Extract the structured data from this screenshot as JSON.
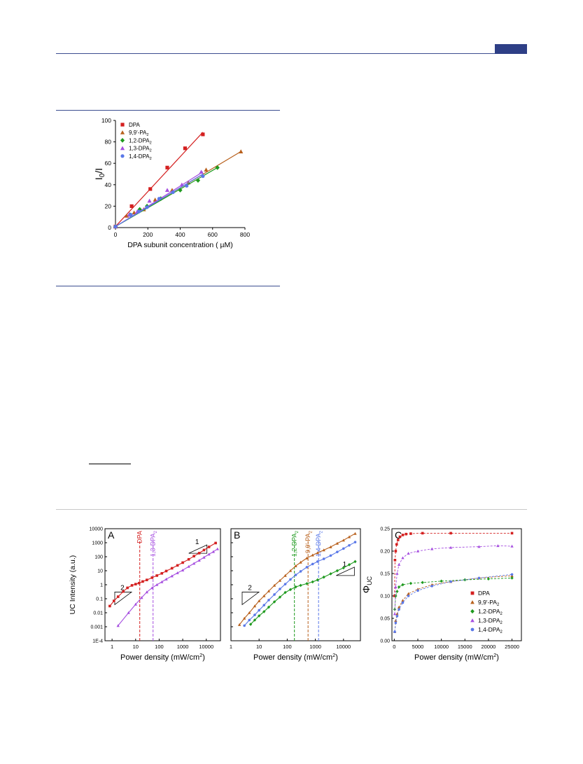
{
  "chart_data": [
    {
      "type": "scatter",
      "title": "",
      "xlabel": "DPA subunit concentration ( µM)",
      "ylabel": "I0/I",
      "xlim": [
        0,
        800
      ],
      "ylim": [
        0,
        100
      ],
      "xticks": [
        0,
        200,
        400,
        600,
        800
      ],
      "yticks": [
        0,
        20,
        40,
        60,
        80,
        100
      ],
      "grid": false,
      "legend": "top-left",
      "series": [
        {
          "name": "DPA",
          "marker": "square",
          "color": "#d42020",
          "x": [
            0,
            100,
            215,
            320,
            430,
            540
          ],
          "y": [
            1,
            20,
            36,
            56,
            74,
            87
          ],
          "fit": [
            [
              0,
              1
            ],
            [
              540,
              89
            ]
          ]
        },
        {
          "name": "9,9'-PA 2",
          "marker": "triangle",
          "color": "#b8601c",
          "x": [
            0,
            70,
            115,
            175,
            245,
            350,
            450,
            560,
            775
          ],
          "y": [
            1,
            11,
            14,
            17,
            26,
            35,
            42,
            54,
            71
          ],
          "fit": [
            [
              0,
              1
            ],
            [
              775,
              71
            ]
          ]
        },
        {
          "name": "1,2-DPA 2",
          "marker": "diamond",
          "color": "#1f9a1f",
          "x": [
            0,
            90,
            150,
            195,
            280,
            400,
            510,
            630
          ],
          "y": [
            1,
            12,
            17,
            20,
            27,
            35,
            44,
            56
          ],
          "fit": [
            [
              0,
              1
            ],
            [
              630,
              56
            ]
          ]
        },
        {
          "name": "1,3-DPA 2",
          "marker": "triangle",
          "color": "#a64fe0",
          "x": [
            0,
            85,
            135,
            210,
            320,
            410,
            530
          ],
          "y": [
            1,
            12,
            15,
            25,
            35,
            40,
            52
          ],
          "fit": [
            [
              0,
              1
            ],
            [
              540,
              52
            ]
          ]
        },
        {
          "name": "1,4-DPA 2",
          "marker": "circle",
          "color": "#5a78e8",
          "x": [
            0,
            95,
            145,
            195,
            270,
            355,
            440,
            540
          ],
          "y": [
            1,
            12,
            15,
            19,
            27,
            33,
            39,
            48
          ],
          "fit": [
            [
              0,
              1
            ],
            [
              540,
              50
            ]
          ]
        }
      ]
    },
    {
      "type": "scatter",
      "panel": "A",
      "xlabel": "Power density (mW/cm2)",
      "ylabel": "UC Intensity (a.u.)",
      "xscale": "log",
      "yscale": "log",
      "xlim": [
        0.5,
        40000
      ],
      "ylim": [
        0.0001,
        10000
      ],
      "xticks": [
        "1",
        "10",
        "100",
        "1000",
        "10000"
      ],
      "yticks": [
        "1E-4",
        "0.001",
        "0.01",
        "0.1",
        "1",
        "10",
        "100",
        "1000",
        "10000"
      ],
      "thresholds": [
        {
          "label": "DPA",
          "x": 15,
          "color": "#d42020"
        },
        {
          "label": "1,3-DPA2",
          "x": 55,
          "color": "#a64fe0"
        }
      ],
      "slope_labels": [
        {
          "label": "2",
          "x": 1.3,
          "y": 0.3
        },
        {
          "label": "1",
          "x": 1800,
          "y": 700
        }
      ],
      "series": [
        {
          "name": "DPA",
          "marker": "square",
          "color": "#d42020",
          "x": [
            0.8,
            1.2,
            1.8,
            3,
            4.5,
            7,
            10,
            14,
            20,
            30,
            50,
            80,
            130,
            200,
            350,
            600,
            1000,
            1800,
            3000,
            5000,
            8000,
            13000,
            25000
          ],
          "y": [
            0.03,
            0.07,
            0.14,
            0.33,
            0.6,
            0.9,
            1.1,
            1.3,
            1.7,
            2.2,
            3.2,
            4.5,
            6.5,
            9.5,
            15,
            24,
            38,
            65,
            110,
            180,
            300,
            500,
            950
          ]
        },
        {
          "name": "1,3-DPA 2",
          "marker": "triangle",
          "color": "#a64fe0",
          "x": [
            1.8,
            5,
            10,
            18,
            30,
            50,
            80,
            130,
            200,
            350,
            600,
            1000,
            1800,
            3000,
            5000,
            8000,
            13000,
            20000,
            30000
          ],
          "y": [
            0.0012,
            0.01,
            0.04,
            0.12,
            0.3,
            0.6,
            1,
            1.6,
            2.5,
            4.2,
            7,
            11,
            20,
            33,
            55,
            90,
            150,
            230,
            360
          ]
        }
      ]
    },
    {
      "type": "scatter",
      "panel": "B",
      "xlabel": "Power density (mW/cm2)",
      "ylabel": "",
      "xscale": "log",
      "yscale": "log",
      "xlim": [
        1,
        40000
      ],
      "ylim": [
        0.0001,
        10000
      ],
      "xticks": [
        "1",
        "10",
        "100",
        "1000",
        "10000"
      ],
      "thresholds": [
        {
          "label": "1,2-DPA2",
          "x": 180,
          "color": "#1f9a1f"
        },
        {
          "label": "9,9'-PA2",
          "x": 550,
          "color": "#b8601c"
        },
        {
          "label": "1,4-DPA2",
          "x": 1300,
          "color": "#5a78e8"
        }
      ],
      "slope_labels": [
        {
          "label": "2",
          "x": 2.5,
          "y": 0.3
        },
        {
          "label": "1",
          "x": 5500,
          "y": 18
        }
      ],
      "series": [
        {
          "name": "9,9'-PA 2",
          "marker": "triangle",
          "color": "#b8601c",
          "x": [
            2,
            3,
            4.5,
            7,
            10,
            15,
            22,
            35,
            55,
            85,
            130,
            200,
            300,
            500,
            800,
            1200,
            2000,
            3500,
            6000,
            10000,
            16000,
            26000
          ],
          "y": [
            0.0014,
            0.004,
            0.01,
            0.03,
            0.07,
            0.16,
            0.35,
            0.9,
            2,
            4.5,
            10,
            22,
            40,
            80,
            130,
            190,
            300,
            500,
            900,
            1500,
            2600,
            4500
          ]
        },
        {
          "name": "1,4-DPA 2",
          "marker": "circle",
          "color": "#5a78e8",
          "x": [
            3,
            4.5,
            7,
            10,
            15,
            22,
            35,
            55,
            85,
            130,
            200,
            300,
            500,
            800,
            1200,
            2000,
            3500,
            6000,
            10000,
            16000,
            26000
          ],
          "y": [
            0.0012,
            0.003,
            0.007,
            0.015,
            0.035,
            0.08,
            0.2,
            0.5,
            1.1,
            2.4,
            5,
            9,
            18,
            30,
            45,
            70,
            120,
            220,
            380,
            650,
            1100
          ]
        },
        {
          "name": "1,2-DPA 2",
          "marker": "diamond",
          "color": "#1f9a1f",
          "x": [
            5,
            7,
            10,
            15,
            22,
            35,
            55,
            85,
            130,
            200,
            300,
            500,
            800,
            1200,
            2000,
            3500,
            6000,
            10000,
            16000,
            26000
          ],
          "y": [
            0.0015,
            0.003,
            0.006,
            0.012,
            0.025,
            0.06,
            0.13,
            0.28,
            0.45,
            0.7,
            0.9,
            1.2,
            1.6,
            2.2,
            3.5,
            6,
            10,
            16,
            27,
            45
          ]
        }
      ]
    },
    {
      "type": "scatter",
      "panel": "C",
      "xlabel": "Power density (mW/cm2)",
      "ylabel": "ΦUC",
      "xlim": [
        -500,
        27000
      ],
      "ylim": [
        0,
        0.25
      ],
      "xticks": [
        0,
        5000,
        10000,
        15000,
        20000,
        25000
      ],
      "yticks": [
        "0.00",
        "0.05",
        "0.10",
        "0.15",
        "0.20",
        "0.25"
      ],
      "legend": "bottom-right",
      "series": [
        {
          "name": "DPA",
          "marker": "square",
          "color": "#d42020",
          "x": [
            50,
            150,
            300,
            500,
            800,
            1200,
            1800,
            2500,
            3500,
            6000,
            12000,
            25000
          ],
          "y": [
            0.1,
            0.18,
            0.2,
            0.215,
            0.225,
            0.232,
            0.236,
            0.238,
            0.239,
            0.24,
            0.24,
            0.24
          ]
        },
        {
          "name": "9,9'-PA2",
          "marker": "triangle",
          "color": "#b8601c",
          "x": [
            100,
            300,
            600,
            1000,
            1800,
            3000,
            5000,
            8000,
            12000,
            18000,
            25000
          ],
          "y": [
            0.02,
            0.045,
            0.06,
            0.075,
            0.09,
            0.105,
            0.115,
            0.125,
            0.132,
            0.14,
            0.145
          ]
        },
        {
          "name": "1,2-DPA2",
          "marker": "diamond",
          "color": "#1f9a1f",
          "x": [
            100,
            300,
            600,
            1000,
            1800,
            3500,
            6000,
            10000,
            15000,
            20000,
            25000
          ],
          "y": [
            0.07,
            0.1,
            0.11,
            0.12,
            0.125,
            0.128,
            0.13,
            0.133,
            0.136,
            0.138,
            0.14
          ]
        },
        {
          "name": "1,3-DPA2",
          "marker": "triangle",
          "color": "#a64fe0",
          "x": [
            100,
            300,
            600,
            1000,
            1800,
            3000,
            5000,
            8000,
            12000,
            18000,
            22000,
            25000
          ],
          "y": [
            0.06,
            0.12,
            0.15,
            0.17,
            0.185,
            0.195,
            0.2,
            0.205,
            0.208,
            0.21,
            0.212,
            0.211
          ]
        },
        {
          "name": "1,4-DPA2",
          "marker": "circle",
          "color": "#5a78e8",
          "x": [
            100,
            300,
            600,
            1000,
            1800,
            3000,
            5000,
            8000,
            12000,
            18000,
            25000
          ],
          "y": [
            0.02,
            0.04,
            0.055,
            0.07,
            0.085,
            0.1,
            0.112,
            0.122,
            0.132,
            0.14,
            0.148
          ]
        }
      ]
    }
  ]
}
